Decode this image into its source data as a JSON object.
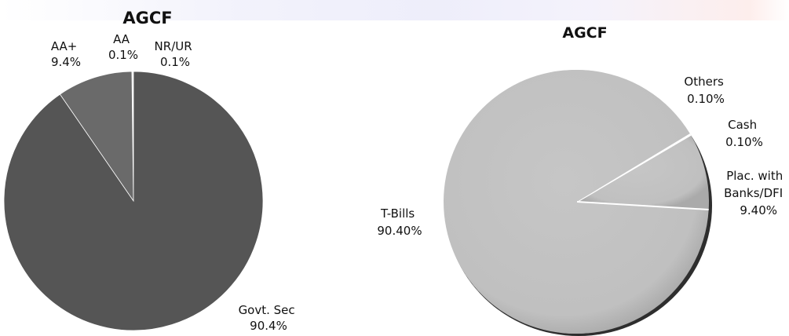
{
  "chart_data": [
    {
      "type": "pie",
      "title": "AGCF",
      "slices": [
        {
          "name": "Govt. Sec",
          "value": 90.4,
          "display": "90.4%",
          "color": "#555555"
        },
        {
          "name": "AA+",
          "value": 9.4,
          "display": "9.4%",
          "color": "#6a6a6a"
        },
        {
          "name": "AA",
          "value": 0.1,
          "display": "0.1%",
          "color": "#8a8a8a"
        },
        {
          "name": "NR/UR",
          "value": 0.1,
          "display": "0.1%",
          "color": "#a8a8a8"
        }
      ]
    },
    {
      "type": "pie",
      "title": "AGCF",
      "slices": [
        {
          "name": "T-Bills",
          "value": 90.4,
          "display": "90.40%",
          "color": "#c3c3c3"
        },
        {
          "name": "Plac. with Banks/DFI",
          "value": 9.4,
          "display": "9.40%",
          "color": "#c3c3c3"
        },
        {
          "name": "Cash",
          "value": 0.1,
          "display": "0.10%",
          "color": "#c3c3c3"
        },
        {
          "name": "Others",
          "value": 0.1,
          "display": "0.10%",
          "color": "#c3c3c3"
        }
      ]
    }
  ]
}
